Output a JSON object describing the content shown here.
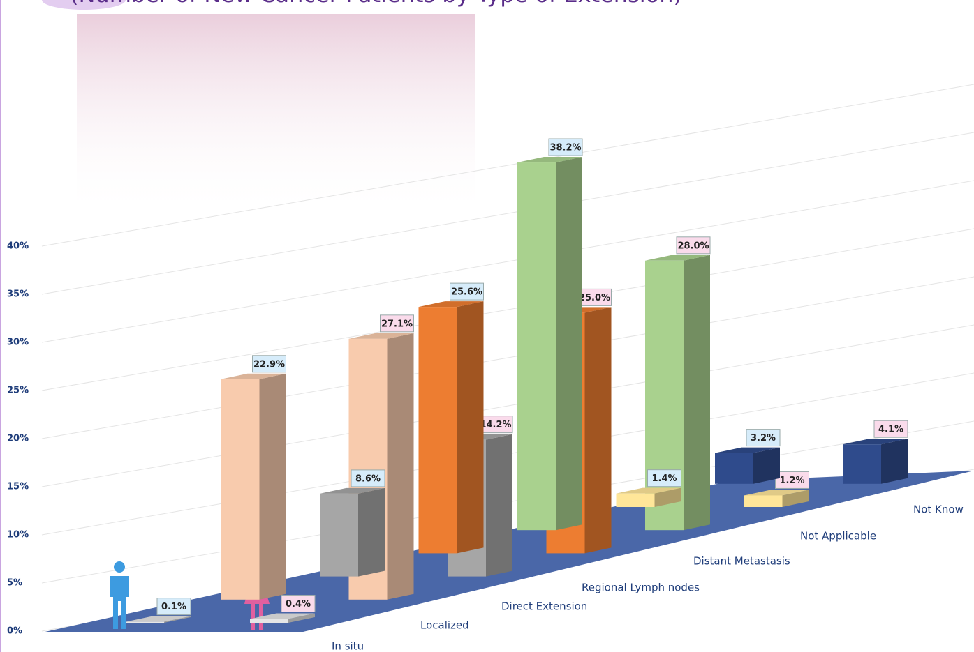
{
  "chart_data": {
    "type": "bar3d",
    "title": "(Number of New Cancer Patients by Type of Extension)",
    "categories": [
      "In situ",
      "Localized",
      "Direct Extension",
      "Regional Lymph nodes",
      "Distant Metastasis",
      "Not Applicable",
      "Not Know"
    ],
    "category_colors": [
      "#e6e6e6",
      "#f8cbad",
      "#a6a6a6",
      "#ed7d31",
      "#a9d18e",
      "#ffe699",
      "#2f4b8c"
    ],
    "series": [
      {
        "color": "#3d9be0",
        "values": [
          0.1,
          22.9,
          8.6,
          25.6,
          38.2,
          1.4,
          3.2
        ],
        "value_labels": [
          "0.1%",
          "22.9%",
          "8.6%",
          "25.6%",
          "38.2%",
          "1.4%",
          "3.2%"
        ]
      },
      {
        "color": "#e0609f",
        "values": [
          0.4,
          27.1,
          14.2,
          25.0,
          28.0,
          1.2,
          4.1
        ],
        "value_labels": [
          "0.4%",
          "27.1%",
          "14.2%",
          "25.0%",
          "28.0%",
          "1.2%",
          "4.1%"
        ]
      }
    ],
    "ylim": [
      0,
      40
    ],
    "yticks": [
      {
        "value": 0,
        "label": "0%"
      },
      {
        "value": 5,
        "label": "5%"
      },
      {
        "value": 10,
        "label": "10%"
      },
      {
        "value": 15,
        "label": "15%"
      },
      {
        "value": 20,
        "label": "20%"
      },
      {
        "value": 25,
        "label": "25%"
      },
      {
        "value": 30,
        "label": "30%"
      },
      {
        "value": 35,
        "label": "35%"
      },
      {
        "value": 40,
        "label": "40%"
      }
    ],
    "grid": true
  }
}
